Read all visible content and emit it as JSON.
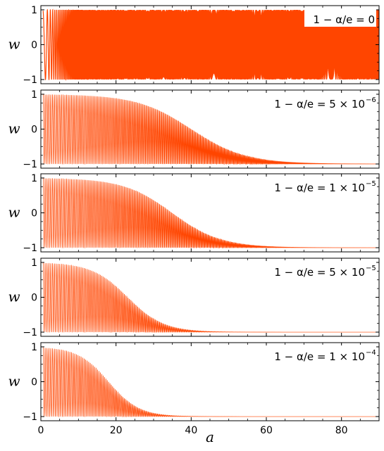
{
  "chart_data": {
    "type": "line",
    "xlabel": "a",
    "ylabel": "w",
    "xlim": [
      0,
      90
    ],
    "ylim": [
      -1.12,
      1.12
    ],
    "xticks": [
      0,
      20,
      40,
      60,
      80
    ],
    "xtick_labels": [
      "0",
      "20",
      "40",
      "60",
      "80"
    ],
    "yticks": [
      -1,
      0,
      1
    ],
    "ytick_labels": [
      "−1",
      "0",
      "1"
    ],
    "line_color": "#ff4500",
    "grid": false,
    "panels": [
      {
        "annotation_prefix": "1 − α/e = 0",
        "annotation_exp": "",
        "epsilon": 0,
        "series": [
          {
            "x": [
              0.5,
              90
            ],
            "y_envelope_upper": [
              1,
              1
            ],
            "y_envelope_lower": [
              -1,
              -1
            ]
          }
        ]
      },
      {
        "annotation_prefix": "1 − α/e = 5 × 10",
        "annotation_exp": "−6",
        "epsilon": 5e-06,
        "series": [
          {
            "x": [
              0.5,
              90
            ],
            "envelope_center_start": 0,
            "envelope_center_end": -0.88
          }
        ]
      },
      {
        "annotation_prefix": "1 − α/e = 1 × 10",
        "annotation_exp": "−5",
        "epsilon": 1e-05,
        "series": [
          {
            "x": [
              0.5,
              90
            ],
            "envelope_center_start": 0,
            "envelope_center_end": -0.95
          }
        ]
      },
      {
        "annotation_prefix": "1 − α/e = 5 × 10",
        "annotation_exp": "−5",
        "epsilon": 5e-05,
        "series": [
          {
            "x": [
              0.5,
              90
            ],
            "envelope_center_start": 0,
            "envelope_center_end": -1
          }
        ]
      },
      {
        "annotation_prefix": "1 − α/e = 1 × 10",
        "annotation_exp": "−4",
        "epsilon": 0.0001,
        "series": [
          {
            "x": [
              0.5,
              90
            ],
            "envelope_center_start": 0,
            "envelope_center_end": -1
          }
        ]
      }
    ]
  }
}
